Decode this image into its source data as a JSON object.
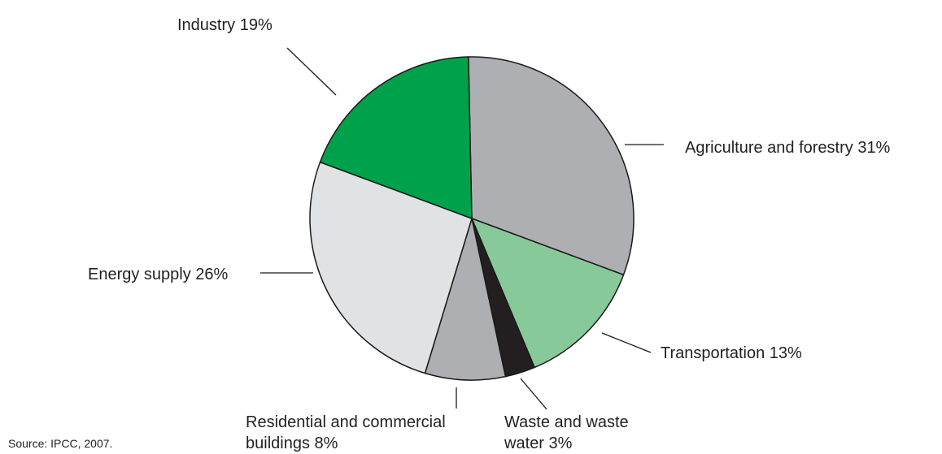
{
  "chart_data": {
    "type": "pie",
    "slices": [
      {
        "name": "Agriculture and forestry",
        "value": 31,
        "label": "Agriculture and forestry 31%",
        "color": "#aeafb2",
        "label_lines": [
          "Agriculture and forestry 31%"
        ]
      },
      {
        "name": "Transportation",
        "value": 13,
        "label": "Transportation 13%",
        "color": "#88c999",
        "label_lines": [
          "Transportation 13%"
        ]
      },
      {
        "name": "Waste and waste water",
        "value": 3,
        "label": "Waste and waste water 3%",
        "color": "#231f20",
        "label_lines": [
          "Waste and waste",
          "water 3%"
        ]
      },
      {
        "name": "Residential and commercial buildings",
        "value": 8,
        "label": "Residential and commercial buildings 8%",
        "color": "#aeafb2",
        "label_lines": [
          "Residential and commercial",
          "buildings 8%"
        ]
      },
      {
        "name": "Energy supply",
        "value": 26,
        "label": "Energy supply 26%",
        "color": "#e1e2e4",
        "label_lines": [
          "Energy supply 26%"
        ]
      },
      {
        "name": "Industry",
        "value": 19,
        "label": "Industry 19%",
        "color": "#00a14b",
        "label_lines": [
          "Industry 19%"
        ]
      }
    ],
    "source": "Source: IPCC, 2007."
  }
}
